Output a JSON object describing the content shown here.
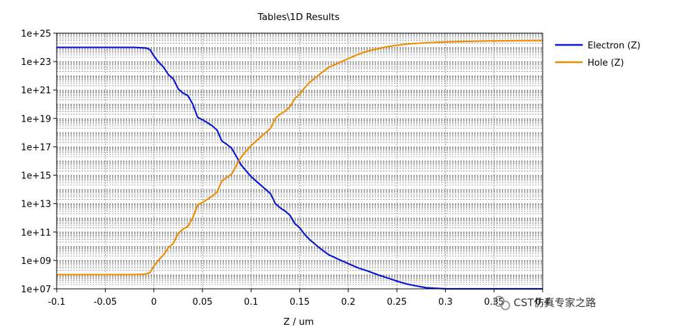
{
  "chart_data": {
    "type": "line",
    "title": "Tables\\1D Results",
    "xlabel": "Z / um",
    "ylabel": "",
    "y_scale": "log",
    "xlim": [
      -0.1,
      0.4
    ],
    "ylim": [
      10000000.0,
      1e+25
    ],
    "x_ticks": [
      -0.1,
      -0.05,
      0,
      0.05,
      0.1,
      0.15,
      0.2,
      0.25,
      0.3,
      0.35,
      0.4
    ],
    "x_tick_labels": [
      "-0.1",
      "-0.05",
      "0",
      "0.05",
      "0.1",
      "0.15",
      "0.2",
      "0.25",
      "0.3",
      "0.35",
      "0.4"
    ],
    "y_ticks": [
      1e+25,
      1e+23,
      1e+21,
      1e+19,
      1e+17,
      1000000000000000.0,
      10000000000000.0,
      100000000000.0,
      1000000000.0,
      10000000.0
    ],
    "y_tick_labels": [
      "1e+25",
      "1e+23",
      "1e+21",
      "1e+19",
      "1e+17",
      "1e+15",
      "1e+13",
      "1e+11",
      "1e+09",
      "1e+07"
    ],
    "grid": true,
    "legend_position": "right",
    "series": [
      {
        "name": "Electron (Z)",
        "color": "#0a14d6",
        "x": [
          -0.1,
          -0.06,
          -0.02,
          -0.008,
          -0.004,
          0.0,
          0.005,
          0.01,
          0.015,
          0.02,
          0.025,
          0.03,
          0.035,
          0.04,
          0.045,
          0.05,
          0.055,
          0.06,
          0.065,
          0.07,
          0.075,
          0.08,
          0.085,
          0.09,
          0.095,
          0.1,
          0.105,
          0.11,
          0.115,
          0.12,
          0.125,
          0.13,
          0.135,
          0.14,
          0.145,
          0.15,
          0.155,
          0.16,
          0.17,
          0.18,
          0.19,
          0.2,
          0.21,
          0.22,
          0.23,
          0.24,
          0.25,
          0.26,
          0.27,
          0.28,
          0.3,
          0.32,
          0.34,
          0.36,
          0.38,
          0.4
        ],
        "y": [
          1e+24,
          1e+24,
          1e+24,
          9e+23,
          7e+23,
          2.5e+23,
          9e+22,
          4e+22,
          1.2e+22,
          6e+21,
          1.2e+21,
          6e+20,
          4e+20,
          1e+20,
          1.2e+19,
          8e+18,
          5e+18,
          3e+18,
          1.5e+18,
          2.5e+17,
          1.5e+17,
          8e+16,
          2e+16,
          5000000000000000.0,
          2000000000000000.0,
          800000000000000.0,
          400000000000000.0,
          200000000000000.0,
          100000000000000.0,
          50000000000000.0,
          10000000000000.0,
          5000000000000.0,
          3000000000000.0,
          1500000000000.0,
          400000000000.0,
          200000000000.0,
          70000000000.0,
          30000000000.0,
          8000000000.0,
          2500000000.0,
          1200000000.0,
          600000000.0,
          300000000.0,
          180000000.0,
          100000000.0,
          60000000.0,
          35000000.0,
          22000000.0,
          16000000.0,
          12000000.0,
          10000000.0,
          10000000.0,
          10000000.0,
          10000000.0,
          10000000.0,
          10000000.0
        ]
      },
      {
        "name": "Hole (Z)",
        "color": "#f08a00",
        "x": [
          -0.1,
          -0.06,
          -0.02,
          -0.008,
          -0.004,
          0.0,
          0.005,
          0.01,
          0.015,
          0.02,
          0.025,
          0.03,
          0.035,
          0.04,
          0.045,
          0.05,
          0.055,
          0.06,
          0.065,
          0.07,
          0.075,
          0.08,
          0.085,
          0.09,
          0.095,
          0.1,
          0.105,
          0.11,
          0.115,
          0.12,
          0.125,
          0.13,
          0.135,
          0.14,
          0.145,
          0.15,
          0.155,
          0.16,
          0.17,
          0.18,
          0.19,
          0.2,
          0.21,
          0.22,
          0.23,
          0.24,
          0.25,
          0.26,
          0.27,
          0.28,
          0.3,
          0.32,
          0.34,
          0.36,
          0.38,
          0.4
        ],
        "y": [
          100000000.0,
          100000000.0,
          100000000.0,
          110000000.0,
          140000000.0,
          400000000.0,
          1100000000.0,
          2500000000.0,
          8000000000.0,
          16000000000.0,
          80000000000.0,
          160000000000.0,
          250000000000.0,
          1000000000000.0,
          8000000000000.0,
          12000000000000.0,
          20000000000000.0,
          33000000000000.0,
          65000000000000.0,
          400000000000000.0,
          700000000000000.0,
          1200000000000000.0,
          5000000000000000.0,
          2e+16,
          5e+16,
          1.2e+17,
          2.5e+17,
          5e+17,
          1e+18,
          2e+18,
          1e+19,
          2e+19,
          3.2e+19,
          6.5e+19,
          2.5e+20,
          5e+20,
          1.4e+21,
          3.3e+21,
          1.2e+22,
          4e+22,
          8e+22,
          1.6e+23,
          3.2e+23,
          5.5e+23,
          8e+23,
          1.1e+24,
          1.4e+24,
          1.7e+24,
          1.9e+24,
          2.1e+24,
          2.4e+24,
          2.6e+24,
          2.8e+24,
          2.9e+24,
          3e+24,
          3.05e+24
        ]
      }
    ]
  },
  "watermark": {
    "text": "CST仿真专家之路",
    "icon": "wechat-icon"
  }
}
